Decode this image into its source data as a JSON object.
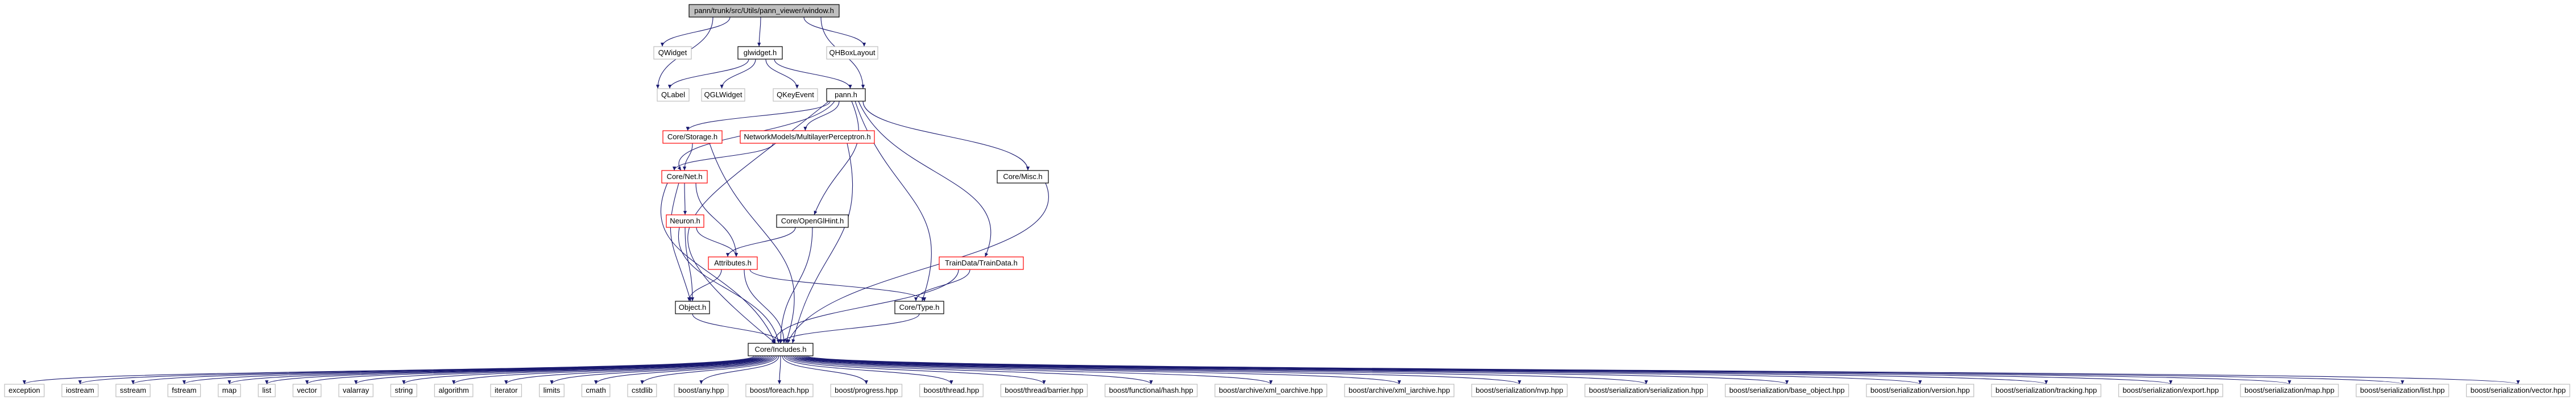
{
  "colors": {
    "edge": "#191970",
    "box_black": "#000000",
    "box_red": "#ff0000",
    "box_gray": "#bfbfbf",
    "root_fill": "#bfbfbf",
    "text": "#000000"
  },
  "nodes": {
    "window_h": "pann/trunk/src/Utils/pann_viewer/window.h",
    "qwidget": "QWidget",
    "glwidget_h": "glwidget.h",
    "qhboxlayout": "QHBoxLayout",
    "qlabel": "QLabel",
    "qglwidget": "QGLWidget",
    "qkeyevent": "QKeyEvent",
    "pann_h": "pann.h",
    "core_storage_h": "Core/Storage.h",
    "network_mlp_h": "NetworkModels/MultilayerPerceptron.h",
    "core_misc_h": "Core/Misc.h",
    "core_net_h": "Core/Net.h",
    "neuron_h": "Neuron.h",
    "core_openglhint_h": "Core/OpenGlHint.h",
    "attributes_h": "Attributes.h",
    "traindata_h": "TrainData/TrainData.h",
    "object_h": "Object.h",
    "core_type_h": "Core/Type.h",
    "core_includes_h": "Core/Includes.h"
  },
  "leaves": [
    "exception",
    "iostream",
    "sstream",
    "fstream",
    "map",
    "list",
    "vector",
    "valarray",
    "string",
    "algorithm",
    "iterator",
    "limits",
    "cmath",
    "cstdlib",
    "boost/any.hpp",
    "boost/foreach.hpp",
    "boost/progress.hpp",
    "boost/thread.hpp",
    "boost/thread/barrier.hpp",
    "boost/functional/hash.hpp",
    "boost/archive/xml_oarchive.hpp",
    "boost/archive/xml_iarchive.hpp",
    "boost/serialization/nvp.hpp",
    "boost/serialization/serialization.hpp",
    "boost/serialization/base_object.hpp",
    "boost/serialization/version.hpp",
    "boost/serialization/tracking.hpp",
    "boost/serialization/export.hpp",
    "boost/serialization/map.hpp",
    "boost/serialization/list.hpp",
    "boost/serialization/vector.hpp"
  ]
}
